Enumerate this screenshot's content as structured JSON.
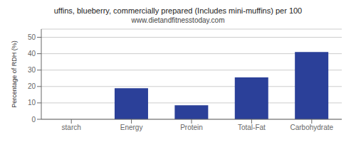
{
  "chart_data": {
    "type": "bar",
    "title": "uffins, blueberry, commercially prepared (Includes mini-muffins) per 100",
    "subtitle": "www.dietandfitnesstoday.com",
    "categories": [
      "starch",
      "Energy",
      "Protein",
      "Total-Fat",
      "Carbohydrate"
    ],
    "values": [
      0,
      19,
      8.5,
      25.5,
      41
    ],
    "color": "#2b4099",
    "ylabel": "Percentage of RDH (%)",
    "ylim": [
      0,
      55
    ],
    "yticks": [
      0,
      10,
      20,
      30,
      40,
      50
    ],
    "grid": true
  }
}
